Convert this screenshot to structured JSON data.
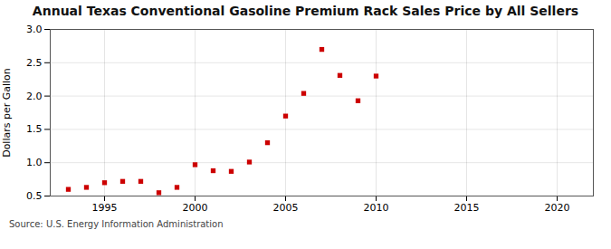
{
  "chart_data": {
    "type": "scatter",
    "title": "Annual Texas Conventional Gasoline Premium Rack Sales Price by All Sellers",
    "ylabel": "Dollars per Gallon",
    "source": "Source: U.S. Energy Information Administration",
    "x": [
      1993,
      1994,
      1995,
      1996,
      1997,
      1998,
      1999,
      2000,
      2001,
      2002,
      2003,
      2004,
      2005,
      2006,
      2007,
      2008,
      2009,
      2010
    ],
    "values": [
      0.6,
      0.63,
      0.7,
      0.72,
      0.72,
      0.55,
      0.63,
      0.97,
      0.88,
      0.87,
      1.01,
      1.3,
      1.7,
      2.04,
      2.7,
      2.31,
      1.93,
      2.3
    ],
    "color": "#cc0000",
    "marker": "square",
    "xlim": [
      1992,
      2022
    ],
    "ylim": [
      0.5,
      3.0
    ],
    "xticks": [
      1995,
      2000,
      2005,
      2010,
      2015,
      2020
    ],
    "yticks": [
      0.5,
      {
        "value": 1.0,
        "label": "1.0"
      },
      1.5,
      {
        "value": 2.0,
        "label": "2.0"
      },
      2.5,
      {
        "value": 3.0,
        "label": "3.0"
      }
    ],
    "grid": true
  }
}
